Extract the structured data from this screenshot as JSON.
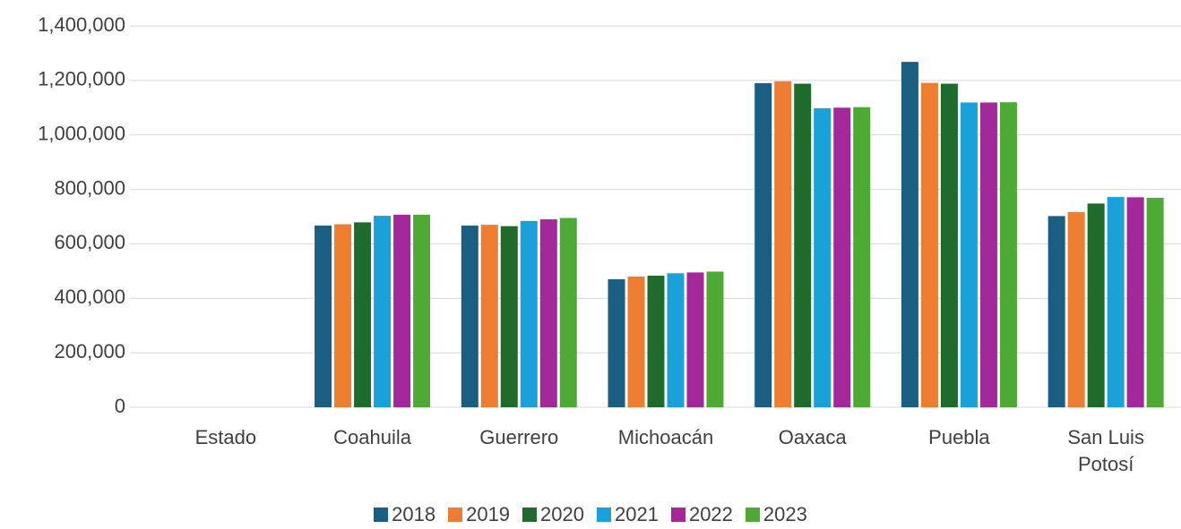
{
  "chart_data": {
    "type": "bar",
    "categories": [
      "Estado",
      "Coahuila",
      "Guerrero",
      "Michoacán",
      "Oaxaca",
      "Puebla",
      "San Luis Potosí"
    ],
    "series": [
      {
        "name": "2018",
        "color": "#1a5e82",
        "values": [
          null,
          667000,
          667000,
          470000,
          1190000,
          1268000,
          702000
        ]
      },
      {
        "name": "2019",
        "color": "#ed7d31",
        "values": [
          null,
          672000,
          670000,
          480000,
          1197000,
          1191000,
          717000
        ]
      },
      {
        "name": "2020",
        "color": "#1e6b2b",
        "values": [
          null,
          679000,
          665000,
          483000,
          1188000,
          1188000,
          748000
        ]
      },
      {
        "name": "2021",
        "color": "#1ba1d9",
        "values": [
          null,
          703000,
          684000,
          492000,
          1098000,
          1119000,
          772000
        ]
      },
      {
        "name": "2022",
        "color": "#a3289a",
        "values": [
          null,
          707000,
          690000,
          495000,
          1100000,
          1119000,
          771000
        ]
      },
      {
        "name": "2023",
        "color": "#4faa35",
        "values": [
          null,
          707000,
          695000,
          498000,
          1102000,
          1120000,
          769000
        ]
      }
    ],
    "ylim": [
      0,
      1400000
    ],
    "yticks": [
      0,
      {
        "value": 200000,
        "label": "200,000"
      },
      {
        "value": 400000,
        "label": "400,000"
      },
      {
        "value": 600000,
        "label": "600,000"
      },
      {
        "value": 800000,
        "label": "800,000"
      },
      {
        "value": 1000000,
        "label": "1,000,000"
      },
      {
        "value": 1200000,
        "label": "1,200,000"
      },
      {
        "value": 1400000,
        "label": "1,400,000"
      }
    ],
    "grid": true,
    "legend": "bottom"
  }
}
